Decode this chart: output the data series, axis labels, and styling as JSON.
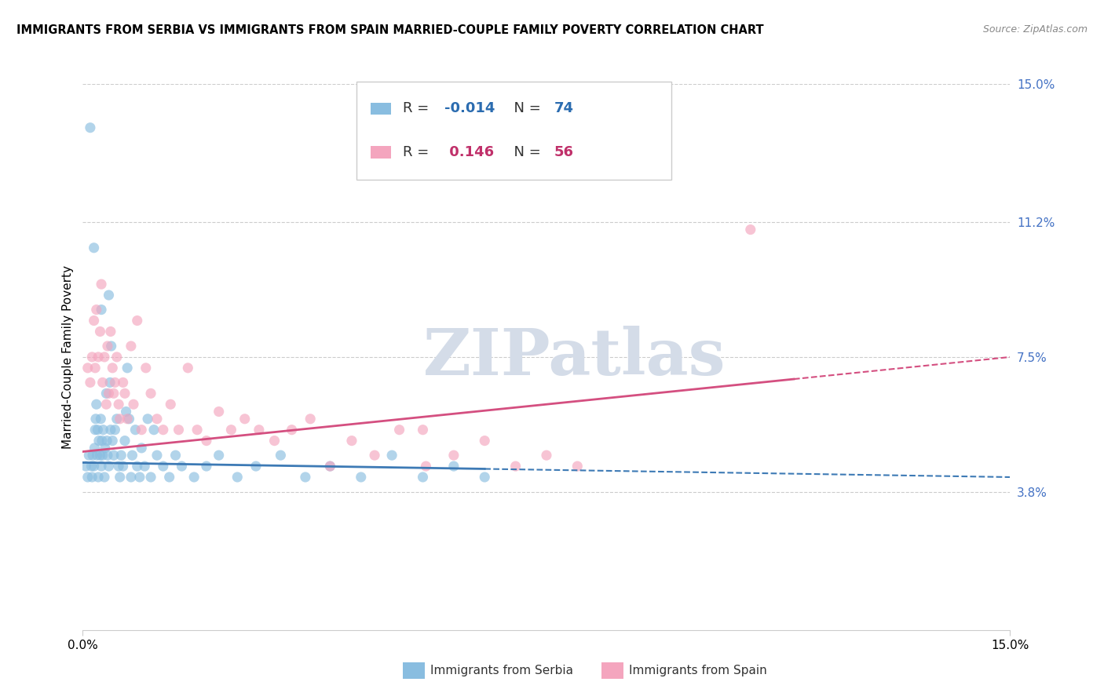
{
  "title": "IMMIGRANTS FROM SERBIA VS IMMIGRANTS FROM SPAIN MARRIED-COUPLE FAMILY POVERTY CORRELATION CHART",
  "source": "Source: ZipAtlas.com",
  "ylabel": "Married-Couple Family Poverty",
  "right_yticks": [
    3.8,
    7.5,
    11.2,
    15.0
  ],
  "right_ytick_labels": [
    "3.8%",
    "7.5%",
    "11.2%",
    "15.0%"
  ],
  "xlim": [
    0.0,
    15.0
  ],
  "ylim": [
    0.0,
    15.0
  ],
  "serbia_R": -0.014,
  "serbia_N": 74,
  "spain_R": 0.146,
  "spain_N": 56,
  "serbia_color": "#89bde0",
  "spain_color": "#f4a5be",
  "serbia_trend_color": "#3d7ab5",
  "spain_trend_color": "#d44f80",
  "serbia_trend_start_y": 4.6,
  "serbia_trend_end_y": 4.2,
  "spain_trend_start_y": 4.9,
  "spain_trend_end_y": 7.5,
  "serbia_x_max_solid": 6.5,
  "spain_x_max_solid": 11.5,
  "watermark": "ZIPatlas",
  "watermark_color": "#d4dce8",
  "serbia_label": "Immigrants from Serbia",
  "spain_label": "Immigrants from Spain",
  "legend_R_serbia_color": "#2b6cb0",
  "legend_R_spain_color": "#c0306a",
  "serbia_x": [
    0.05,
    0.08,
    0.1,
    0.12,
    0.14,
    0.15,
    0.16,
    0.18,
    0.19,
    0.2,
    0.21,
    0.22,
    0.23,
    0.24,
    0.25,
    0.26,
    0.28,
    0.29,
    0.3,
    0.31,
    0.32,
    0.33,
    0.35,
    0.36,
    0.38,
    0.39,
    0.4,
    0.42,
    0.44,
    0.45,
    0.46,
    0.48,
    0.5,
    0.52,
    0.55,
    0.58,
    0.6,
    0.62,
    0.65,
    0.68,
    0.7,
    0.72,
    0.75,
    0.78,
    0.8,
    0.85,
    0.88,
    0.92,
    0.95,
    1.0,
    1.05,
    1.1,
    1.15,
    1.2,
    1.3,
    1.4,
    1.5,
    1.6,
    1.8,
    2.0,
    2.2,
    2.5,
    2.8,
    3.2,
    3.6,
    4.0,
    4.5,
    5.0,
    5.5,
    6.0,
    6.5,
    0.18,
    0.3,
    0.42
  ],
  "serbia_y": [
    4.5,
    4.2,
    4.8,
    13.8,
    4.5,
    4.2,
    4.8,
    4.5,
    5.0,
    5.5,
    5.8,
    6.2,
    4.8,
    5.5,
    4.2,
    5.2,
    4.8,
    5.8,
    4.5,
    5.2,
    4.8,
    5.5,
    4.2,
    5.0,
    6.5,
    5.2,
    4.8,
    4.5,
    6.8,
    5.5,
    7.8,
    5.2,
    4.8,
    5.5,
    5.8,
    4.5,
    4.2,
    4.8,
    4.5,
    5.2,
    6.0,
    7.2,
    5.8,
    4.2,
    4.8,
    5.5,
    4.5,
    4.2,
    5.0,
    4.5,
    5.8,
    4.2,
    5.5,
    4.8,
    4.5,
    4.2,
    4.8,
    4.5,
    4.2,
    4.5,
    4.8,
    4.2,
    4.5,
    4.8,
    4.2,
    4.5,
    4.2,
    4.8,
    4.2,
    4.5,
    4.2,
    10.5,
    8.8,
    9.2
  ],
  "spain_x": [
    0.08,
    0.12,
    0.15,
    0.18,
    0.2,
    0.22,
    0.25,
    0.28,
    0.3,
    0.32,
    0.35,
    0.38,
    0.4,
    0.42,
    0.45,
    0.48,
    0.5,
    0.52,
    0.55,
    0.58,
    0.6,
    0.65,
    0.68,
    0.72,
    0.78,
    0.82,
    0.88,
    0.95,
    1.02,
    1.1,
    1.2,
    1.3,
    1.42,
    1.55,
    1.7,
    1.85,
    2.0,
    2.2,
    2.4,
    2.62,
    2.85,
    3.1,
    3.38,
    3.68,
    4.0,
    4.35,
    4.72,
    5.12,
    5.55,
    6.0,
    6.5,
    7.0,
    7.5,
    8.0,
    10.8,
    5.5
  ],
  "spain_y": [
    7.2,
    6.8,
    7.5,
    8.5,
    7.2,
    8.8,
    7.5,
    8.2,
    9.5,
    6.8,
    7.5,
    6.2,
    7.8,
    6.5,
    8.2,
    7.2,
    6.5,
    6.8,
    7.5,
    6.2,
    5.8,
    6.8,
    6.5,
    5.8,
    7.8,
    6.2,
    8.5,
    5.5,
    7.2,
    6.5,
    5.8,
    5.5,
    6.2,
    5.5,
    7.2,
    5.5,
    5.2,
    6.0,
    5.5,
    5.8,
    5.5,
    5.2,
    5.5,
    5.8,
    4.5,
    5.2,
    4.8,
    5.5,
    4.5,
    4.8,
    5.2,
    4.5,
    4.8,
    4.5,
    11.0,
    5.5
  ]
}
